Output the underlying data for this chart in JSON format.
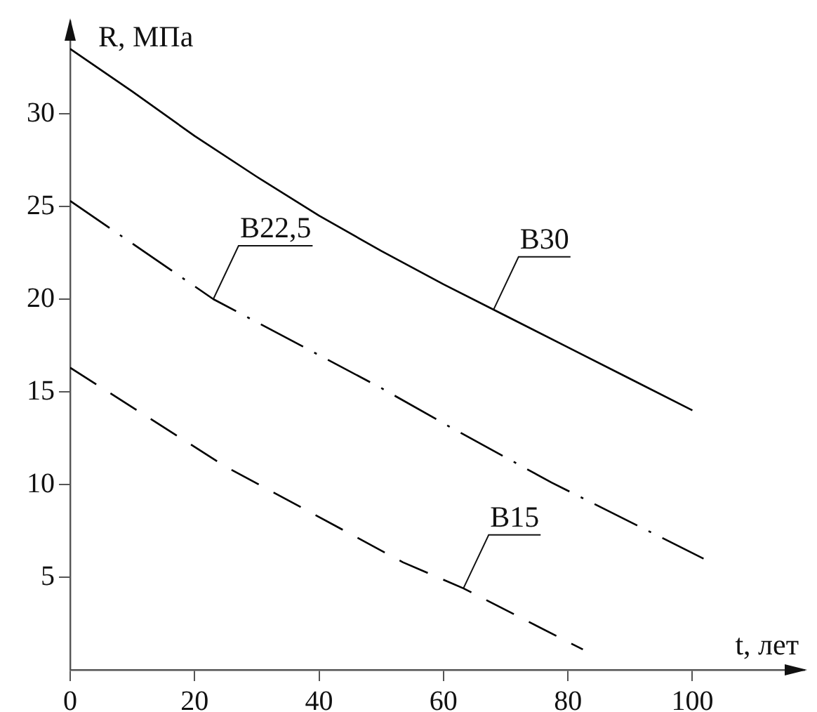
{
  "chart_data": {
    "type": "line",
    "xlabel": "t, лет",
    "ylabel": "R, МПа",
    "xlim": [
      0,
      118
    ],
    "ylim": [
      0,
      35
    ],
    "xticks": [
      0,
      20,
      40,
      60,
      80,
      100
    ],
    "yticks": [
      5,
      10,
      15,
      20,
      25,
      30
    ],
    "grid": false,
    "legend": false,
    "marker": "none",
    "series": [
      {
        "color": "#000000",
        "line_style": "solid",
        "x": [
          0,
          10,
          20,
          30,
          40,
          50,
          60,
          70,
          80,
          90,
          100
        ],
        "values": [
          33.5,
          31.2,
          28.8,
          26.6,
          24.5,
          22.6,
          20.8,
          19.1,
          17.4,
          15.7,
          14.0
        ]
      },
      {
        "color": "#000000",
        "line_style": "dashdot",
        "x": [
          0,
          23,
          50,
          61.6,
          77.4,
          101.8
        ],
        "values": [
          25.3,
          20.0,
          15.2,
          13.0,
          10.1,
          6.0
        ]
      },
      {
        "color": "#000000",
        "line_style": "dashed",
        "x": [
          0,
          24.8,
          53.5,
          63.2,
          82.4
        ],
        "values": [
          16.3,
          11.0,
          5.8,
          4.4,
          1.1
        ]
      }
    ],
    "annotations": [
      {
        "text": "B30",
        "x": 68,
        "y": 19.4
      },
      {
        "text": "B22,5",
        "x": 23,
        "y": 20.0
      },
      {
        "text": "B15",
        "x": 63.2,
        "y": 4.4
      }
    ]
  }
}
